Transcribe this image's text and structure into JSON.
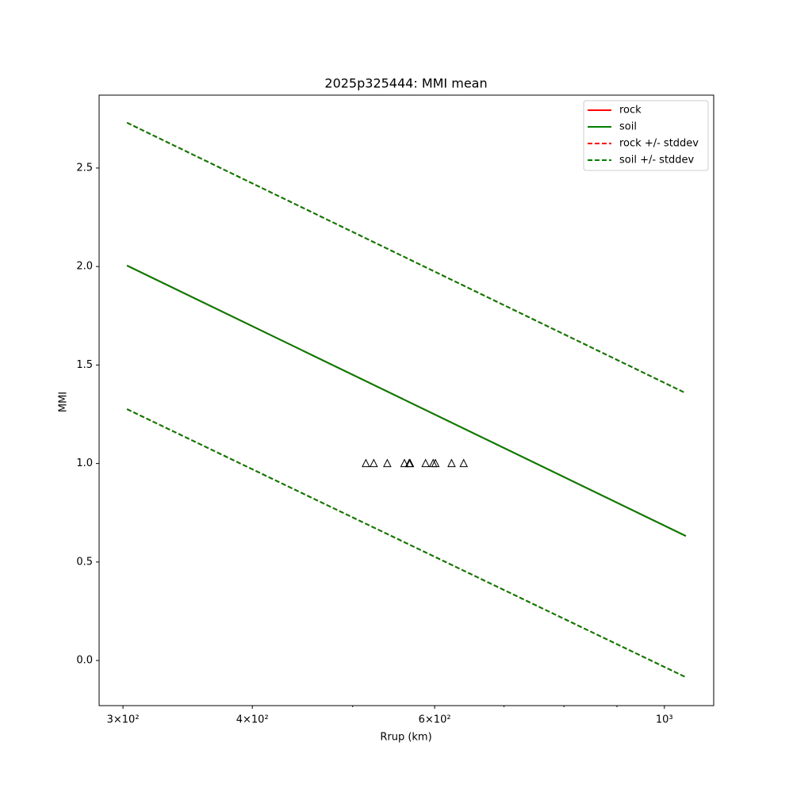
{
  "chart_data": {
    "type": "line",
    "title": "2025p325444: MMI mean",
    "xlabel": "Rrup (km)",
    "ylabel": "MMI",
    "xscale": "log",
    "xlim": [
      284.5,
      1116
    ],
    "ylim": [
      -0.229,
      2.87
    ],
    "xticks": [
      {
        "value": 300,
        "label": "3×10²"
      },
      {
        "value": 400,
        "label": "4×10²"
      },
      {
        "value": 600,
        "label": "6×10²"
      },
      {
        "value": 1000,
        "label": "10³"
      }
    ],
    "xminorticks": [
      500,
      700,
      800,
      900
    ],
    "yticks": [
      {
        "value": 0,
        "label": "0.0"
      },
      0.5,
      {
        "value": 1,
        "label": "1.0"
      },
      1.5,
      {
        "value": 2,
        "label": "2.0"
      },
      2.5
    ],
    "legend": "upper right",
    "series": [
      {
        "name": "rock",
        "color": "#ff0000",
        "dash": false,
        "x": [
          302.7,
          1049
        ],
        "values": [
          2.005,
          0.632
        ]
      },
      {
        "name": "soil",
        "color": "#008000",
        "dash": false,
        "x": [
          302.7,
          1049
        ],
        "values": [
          2.005,
          0.632
        ]
      },
      {
        "name": "rock +/- stddev",
        "color": "#ff0000",
        "dash": true,
        "x": [
          302.7,
          1049
        ],
        "values": [
          2.73,
          1.357
        ],
        "lower": [
          1.276,
          -0.085
        ]
      },
      {
        "name": "soil +/- stddev",
        "color": "#008000",
        "dash": true,
        "x": [
          302.7,
          1049
        ],
        "values": [
          2.73,
          1.357
        ],
        "lower": [
          1.276,
          -0.085
        ]
      }
    ],
    "points": {
      "marker": "triangle",
      "color": "#000000",
      "x": [
        514.9,
        524,
        540,
        561,
        567,
        568,
        588,
        598,
        601,
        623,
        640
      ],
      "values": [
        1,
        1,
        1,
        1,
        1,
        1,
        1,
        1,
        1,
        1,
        1
      ]
    }
  }
}
